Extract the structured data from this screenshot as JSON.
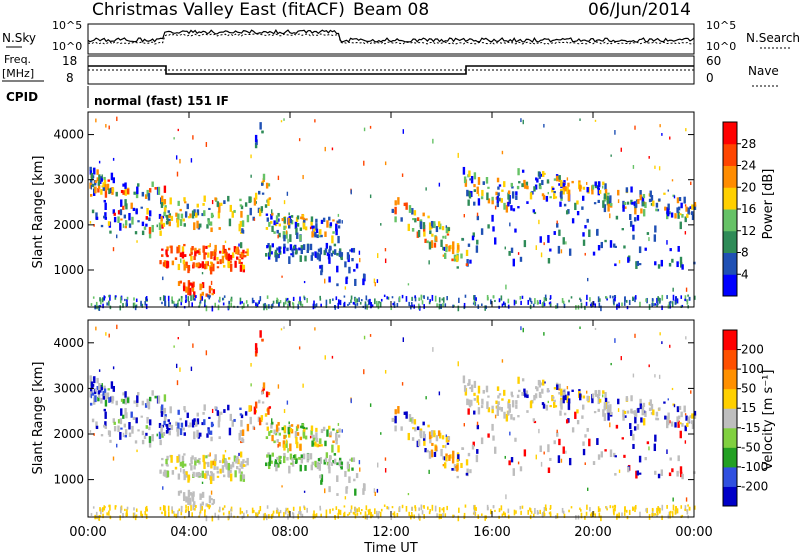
{
  "header": {
    "station": "Christmas Valley East (fitACF)",
    "beam": "Beam 08",
    "date": "06/Jun/2014"
  },
  "top_panels": {
    "nsky_label": "N.Sky",
    "nsearch_label": "N.Search",
    "noise_ticks": [
      "10^5",
      "10^0"
    ],
    "freq_label_1": "Freq.",
    "freq_label_2": "[MHz]",
    "freq_ticks": [
      "18",
      "8"
    ],
    "nave_label": "Nave",
    "nave_ticks": [
      "60",
      "0"
    ],
    "cpid_label": "CPID",
    "cpid_value": "normal (fast) 151 IF"
  },
  "time_axis": {
    "label": "Time UT",
    "ticks": [
      "00:00",
      "04:00",
      "08:00",
      "12:00",
      "16:00",
      "20:00",
      "00:00"
    ]
  },
  "chart_data": [
    {
      "type": "heatmap",
      "title": "",
      "xlabel": "",
      "ylabel": "Slant Range [km]",
      "x_range_hours": [
        0,
        24
      ],
      "ylim": [
        180,
        4500
      ],
      "yticks": [
        1000,
        2000,
        3000,
        4000
      ],
      "colorbar": {
        "label": "Power [dB]",
        "ticks": [
          "4",
          "8",
          "12",
          "16",
          "20",
          "24",
          "28"
        ],
        "colors": [
          "#0000ff",
          "#1f50b4",
          "#2e8b57",
          "#66c266",
          "#ffd000",
          "#ff8c00",
          "#ff4500",
          "#ff0000"
        ]
      }
    },
    {
      "type": "heatmap",
      "title": "",
      "xlabel": "Time UT",
      "ylabel": "Slant Range [km]",
      "x_range_hours": [
        0,
        24
      ],
      "ylim": [
        180,
        4500
      ],
      "yticks": [
        1000,
        2000,
        3000,
        4000
      ],
      "colorbar": {
        "label": "Velocity [m s⁻¹]",
        "ticks": [
          "200",
          "100",
          "50",
          "15",
          "-15",
          "-50",
          "-100",
          "-200"
        ],
        "colors": [
          "#0000c8",
          "#3050e0",
          "#22a022",
          "#80d040",
          "#bebebe",
          "#ffd000",
          "#ff9000",
          "#ff5000",
          "#ff0000"
        ]
      }
    }
  ]
}
